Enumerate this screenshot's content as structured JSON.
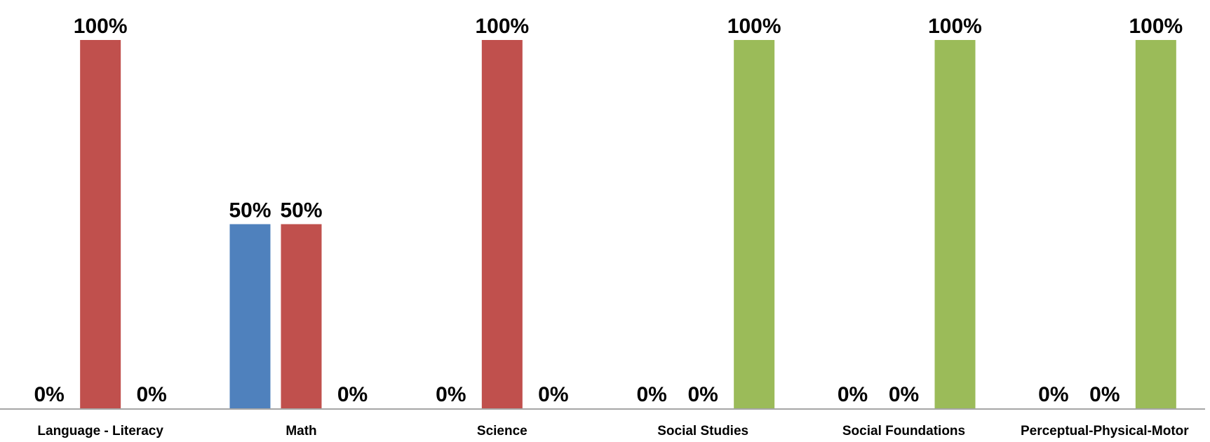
{
  "chart_data": {
    "type": "bar",
    "title": "",
    "xlabel": "",
    "ylabel": "",
    "ylim": [
      0,
      100
    ],
    "grid": false,
    "legend": "none",
    "value_format": "percent",
    "categories": [
      "Language - Literacy",
      "Math",
      "Science",
      "Social Studies",
      "Social Foundations",
      "Perceptual-Physical-Motor"
    ],
    "series": [
      {
        "color": "#4F81BD",
        "values": [
          0,
          50,
          0,
          0,
          0,
          0
        ]
      },
      {
        "color": "#C0504D",
        "values": [
          100,
          50,
          100,
          0,
          0,
          0
        ]
      },
      {
        "color": "#9BBB59",
        "values": [
          0,
          0,
          0,
          100,
          100,
          100
        ]
      }
    ]
  }
}
